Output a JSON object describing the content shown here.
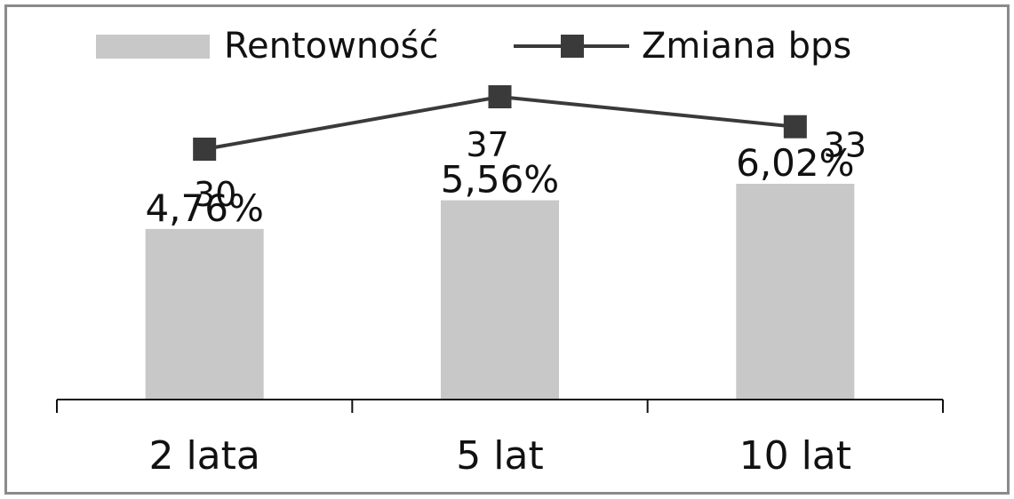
{
  "chart_data": {
    "type": "bar",
    "categories": [
      "2 lata",
      "5 lat",
      "10 lat"
    ],
    "series": [
      {
        "name": "Rentowność",
        "type": "bar",
        "values": [
          4.76,
          5.56,
          6.02
        ],
        "labels": [
          "4,76%",
          "5,56%",
          "6,02%"
        ],
        "color": "#c8c8c8"
      },
      {
        "name": "Zmiana bps",
        "type": "line",
        "values": [
          30,
          37,
          33
        ],
        "labels": [
          "30",
          "37",
          "33"
        ],
        "color": "#3a3a3a"
      }
    ],
    "legend_position": "top",
    "grid": false
  }
}
